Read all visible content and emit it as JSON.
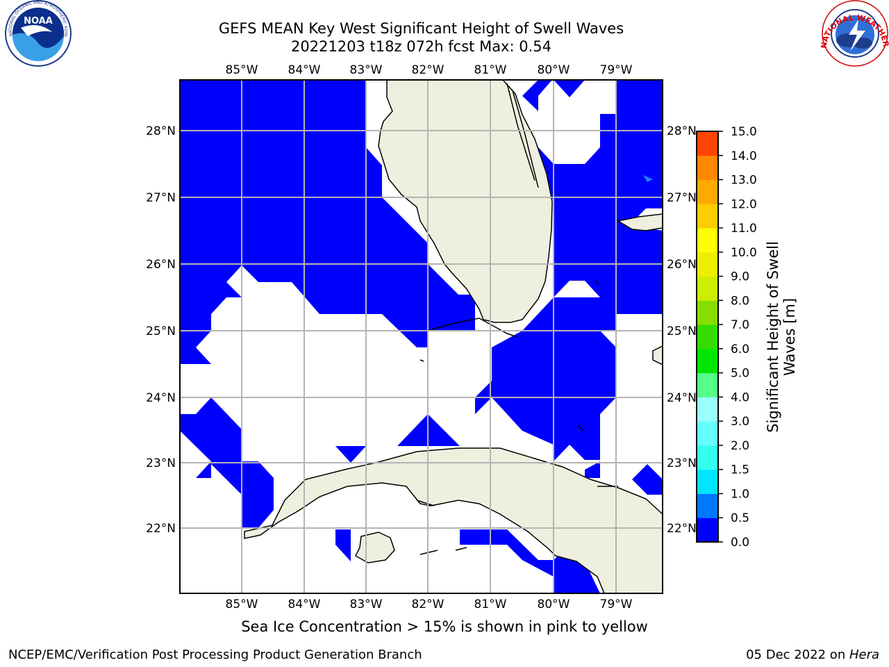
{
  "title": {
    "line1": "GEFS MEAN Key West Significant Height of Swell Waves",
    "line2": "20221203 t18z 072h fcst   Max: 0.54"
  },
  "map": {
    "lon_ticks": [
      "85°W",
      "84°W",
      "83°W",
      "82°W",
      "81°W",
      "80°W",
      "79°W"
    ],
    "lat_ticks": [
      "28°N",
      "27°N",
      "26°N",
      "25°N",
      "24°N",
      "23°N",
      "22°N"
    ],
    "colors": {
      "swell": "#0000ff",
      "land": "#efefdf",
      "grid": "#b4b4b4",
      "coast": "#000000"
    }
  },
  "colorbar": {
    "label_line1": "Significant Height of Swell",
    "label_line2": "Waves [m]",
    "ticks": [
      "0.0",
      "0.5",
      "1.0",
      "1.5",
      "2.0",
      "3.0",
      "4.0",
      "5.0",
      "6.0",
      "7.0",
      "8.0",
      "9.0",
      "10.0",
      "11.0",
      "12.0",
      "13.0",
      "14.0",
      "15.0"
    ],
    "colors": [
      "#0000ff",
      "#0077ff",
      "#00e5ff",
      "#33ffee",
      "#66ffff",
      "#99ffff",
      "#55ff88",
      "#00e600",
      "#33dd00",
      "#88dd00",
      "#ccee00",
      "#eeee00",
      "#ffff00",
      "#ffcc00",
      "#ffaa00",
      "#ff8800",
      "#ff4400",
      "#ff1100"
    ]
  },
  "caption": "Sea Ice Concentration > 15% is shown in pink to yellow",
  "footer": {
    "left": "NCEP/EMC/Verification Post Processing Product Generation Branch",
    "right_date": "05 Dec 2022 on ",
    "right_host": "Hera"
  },
  "logos": {
    "noaa_text": "NOAA",
    "noaa_ring": "NATIONAL OCEANIC AND ATMOSPHERIC ADMINISTRATION • U.S. DEPARTMENT OF COMMERCE",
    "nws_ring": "NATIONAL WEATHER SERVICE"
  }
}
